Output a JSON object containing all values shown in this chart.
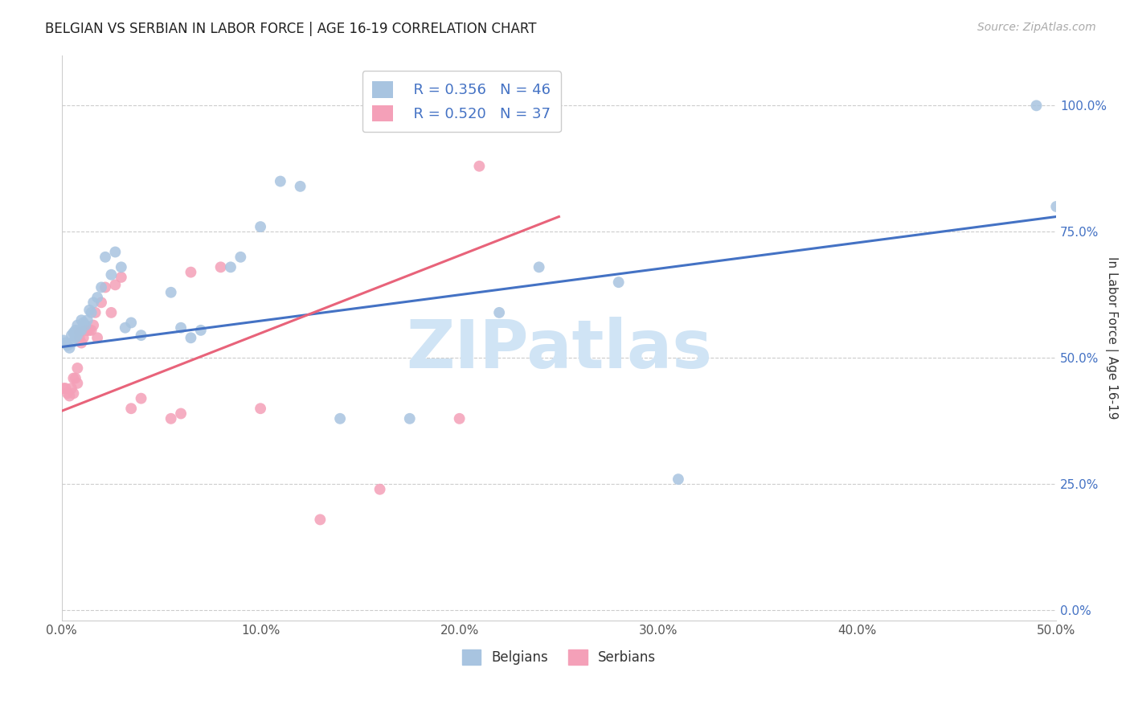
{
  "title": "BELGIAN VS SERBIAN IN LABOR FORCE | AGE 16-19 CORRELATION CHART",
  "source": "Source: ZipAtlas.com",
  "ylabel": "In Labor Force | Age 16-19",
  "xlim": [
    0.0,
    0.5
  ],
  "ylim": [
    -0.02,
    1.1
  ],
  "y_ticks": [
    0.0,
    0.25,
    0.5,
    0.75,
    1.0
  ],
  "x_ticks": [
    0.0,
    0.1,
    0.2,
    0.3,
    0.4,
    0.5
  ],
  "legend_R_belgian": "R = 0.356",
  "legend_N_belgian": "N = 46",
  "legend_R_serbian": "R = 0.520",
  "legend_N_serbian": "N = 37",
  "belgian_color": "#a8c4e0",
  "serbian_color": "#f4a0b8",
  "belgian_line_color": "#4472c4",
  "serbian_line_color": "#e8637a",
  "label_color": "#4472c4",
  "watermark_text": "ZIPatlas",
  "watermark_color": "#d0e4f5",
  "belgian_x": [
    0.001,
    0.002,
    0.003,
    0.004,
    0.005,
    0.005,
    0.006,
    0.007,
    0.007,
    0.008,
    0.008,
    0.009,
    0.01,
    0.01,
    0.011,
    0.012,
    0.013,
    0.014,
    0.015,
    0.016,
    0.018,
    0.02,
    0.022,
    0.025,
    0.027,
    0.03,
    0.032,
    0.035,
    0.04,
    0.055,
    0.06,
    0.065,
    0.07,
    0.085,
    0.09,
    0.1,
    0.11,
    0.12,
    0.14,
    0.175,
    0.22,
    0.24,
    0.28,
    0.31,
    0.49,
    0.5
  ],
  "belgian_y": [
    0.535,
    0.53,
    0.525,
    0.52,
    0.545,
    0.53,
    0.55,
    0.555,
    0.54,
    0.565,
    0.545,
    0.555,
    0.575,
    0.555,
    0.57,
    0.565,
    0.575,
    0.595,
    0.59,
    0.61,
    0.62,
    0.64,
    0.7,
    0.665,
    0.71,
    0.68,
    0.56,
    0.57,
    0.545,
    0.63,
    0.56,
    0.54,
    0.555,
    0.68,
    0.7,
    0.76,
    0.85,
    0.84,
    0.38,
    0.38,
    0.59,
    0.68,
    0.65,
    0.26,
    1.0,
    0.8
  ],
  "serbian_x": [
    0.001,
    0.002,
    0.003,
    0.004,
    0.005,
    0.006,
    0.006,
    0.007,
    0.008,
    0.008,
    0.009,
    0.009,
    0.01,
    0.011,
    0.012,
    0.013,
    0.014,
    0.015,
    0.016,
    0.017,
    0.018,
    0.02,
    0.022,
    0.025,
    0.027,
    0.03,
    0.035,
    0.04,
    0.055,
    0.06,
    0.065,
    0.08,
    0.1,
    0.13,
    0.16,
    0.2,
    0.21
  ],
  "serbian_y": [
    0.44,
    0.44,
    0.43,
    0.425,
    0.44,
    0.43,
    0.46,
    0.46,
    0.45,
    0.48,
    0.55,
    0.54,
    0.53,
    0.54,
    0.555,
    0.555,
    0.555,
    0.555,
    0.565,
    0.59,
    0.54,
    0.61,
    0.64,
    0.59,
    0.645,
    0.66,
    0.4,
    0.42,
    0.38,
    0.39,
    0.67,
    0.68,
    0.4,
    0.18,
    0.24,
    0.38,
    0.88
  ],
  "blue_line_x": [
    0.0,
    0.5
  ],
  "blue_line_y": [
    0.522,
    0.78
  ],
  "pink_line_x": [
    0.0,
    0.25
  ],
  "pink_line_y": [
    0.395,
    0.78
  ]
}
